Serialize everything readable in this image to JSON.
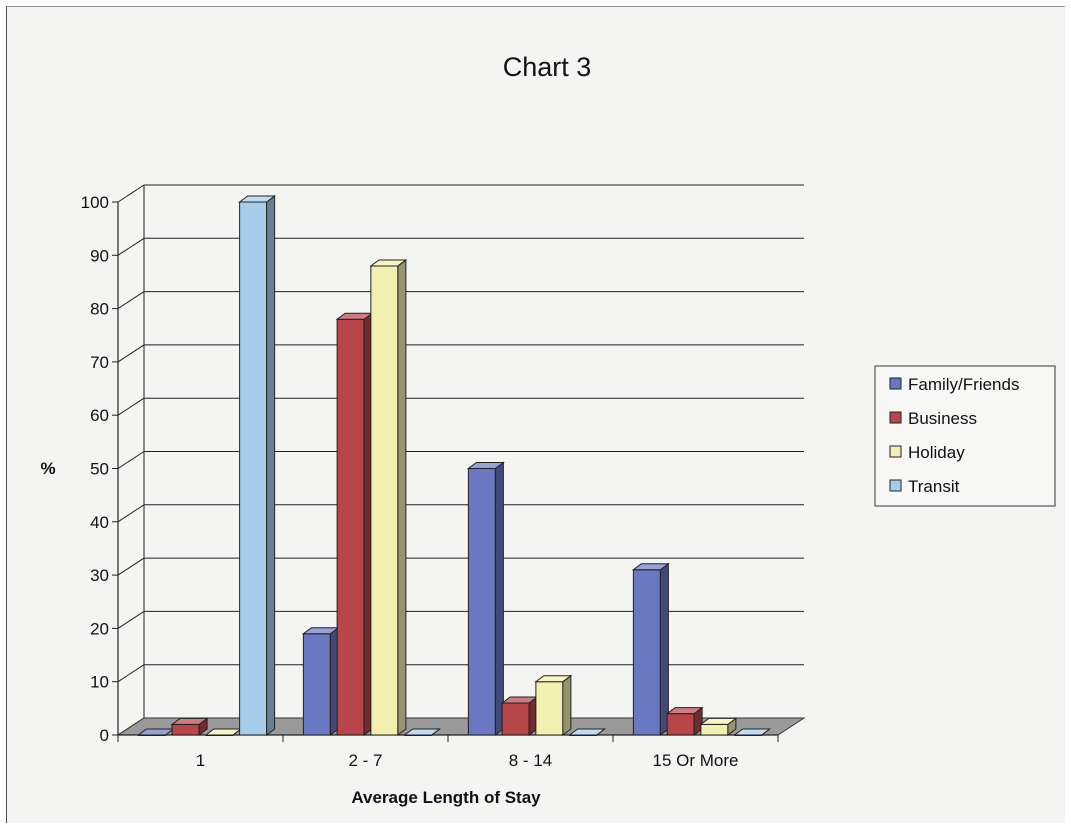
{
  "chart_data": {
    "type": "bar",
    "title": "Chart 3",
    "xlabel": "Average Length of Stay",
    "ylabel": "%",
    "categories": [
      "1",
      "2 - 7",
      "8 - 14",
      "15 Or More"
    ],
    "series": [
      {
        "name": "Family/Friends",
        "values": [
          0,
          19,
          50,
          31
        ],
        "color": "#6a78c2"
      },
      {
        "name": "Business",
        "values": [
          2,
          78,
          6,
          4
        ],
        "color": "#b8454a"
      },
      {
        "name": "Holiday",
        "values": [
          0,
          88,
          10,
          2
        ],
        "color": "#f2f0b0"
      },
      {
        "name": "Transit",
        "values": [
          100,
          0,
          0,
          0
        ],
        "color": "#a6cdec"
      }
    ],
    "ylim": [
      0,
      100
    ],
    "yticks": [
      "0",
      "10",
      "20",
      "30",
      "40",
      "50",
      "60",
      "70",
      "80",
      "90",
      "100"
    ],
    "grid": true,
    "legend_position": "right",
    "style": "3d-clustered-column"
  }
}
